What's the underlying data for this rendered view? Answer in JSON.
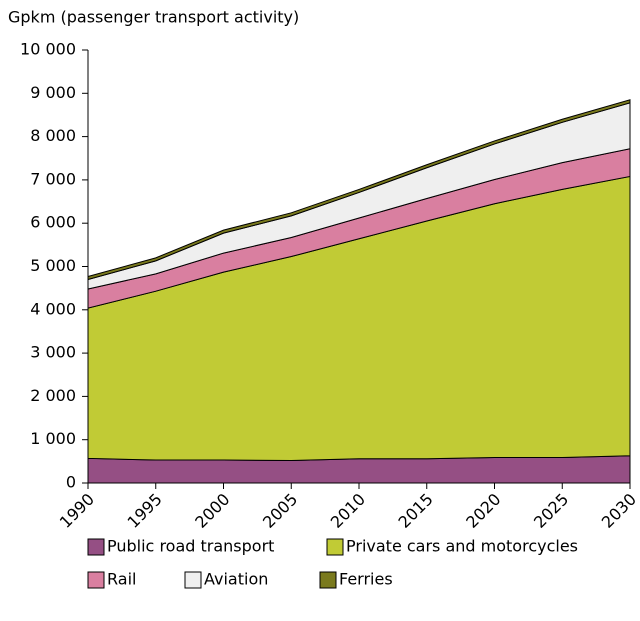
{
  "chart_data": {
    "type": "stacked-area",
    "y_label": "Gpkm (passenger transport activity)",
    "x": [
      1990,
      1995,
      2000,
      2005,
      2010,
      2015,
      2020,
      2025,
      2030
    ],
    "xlim": [
      1990,
      2030
    ],
    "xticks": [
      1990,
      1995,
      2000,
      2005,
      2010,
      2015,
      2020,
      2025,
      2030
    ],
    "ylim": [
      0,
      10000
    ],
    "yticks": [
      0,
      {
        "value": 1000,
        "label": "1 000"
      },
      {
        "value": 2000,
        "label": "2 000"
      },
      {
        "value": 3000,
        "label": "3 000"
      },
      {
        "value": 4000,
        "label": "4 000"
      },
      {
        "value": 5000,
        "label": "5 000"
      },
      {
        "value": 6000,
        "label": "6 000"
      },
      {
        "value": 7000,
        "label": "7 000"
      },
      {
        "value": 8000,
        "label": "8 000"
      },
      {
        "value": 9000,
        "label": "9 000"
      },
      {
        "value": 10000,
        "label": "10 000"
      }
    ],
    "series": [
      {
        "name": "Public road transport",
        "color": "#954f84",
        "values": [
          570,
          530,
          530,
          520,
          560,
          560,
          590,
          590,
          630
        ]
      },
      {
        "name": "Private cars and motorcycles",
        "color": "#c1cb35",
        "values": [
          3470,
          3900,
          4340,
          4710,
          5080,
          5490,
          5860,
          6190,
          6450
        ]
      },
      {
        "name": "Rail",
        "color": "#d97fa0",
        "values": [
          440,
          400,
          440,
          440,
          480,
          520,
          560,
          620,
          640
        ]
      },
      {
        "name": "Aviation",
        "color": "#efefef",
        "values": [
          220,
          300,
          460,
          500,
          590,
          710,
          820,
          930,
          1060
        ]
      },
      {
        "name": "Ferries",
        "color": "#7a7a1e",
        "values": [
          70,
          70,
          70,
          70,
          70,
          70,
          70,
          70,
          70
        ]
      }
    ]
  }
}
